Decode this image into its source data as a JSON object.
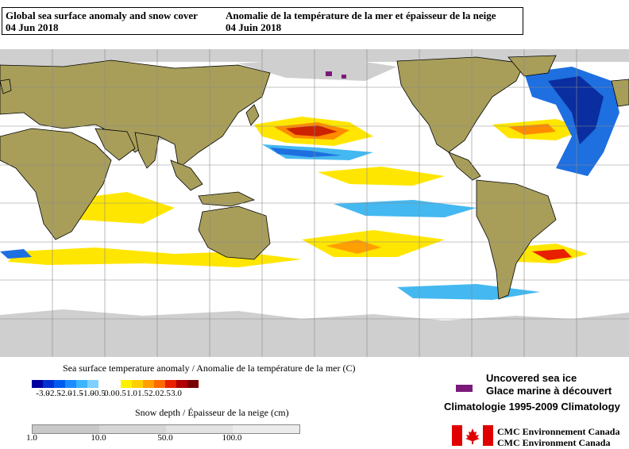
{
  "header": {
    "title_en": "Global sea surface anomaly and snow cover",
    "date_en": "04 Jun 2018",
    "title_fr": "Anomalie de la température de la mer et épaisseur de la neige",
    "date_fr": "04 Juin 2018"
  },
  "colors": {
    "ocean": "#ffffff",
    "land": "#a89e5a",
    "snow_ice": "#cfcfcf",
    "grid": "#8a8a8a",
    "warm_strong": "#cc2200",
    "warm_mid": "#ff8c00",
    "warm_weak": "#ffe600",
    "cool_weak": "#44b8f0",
    "cool_mid": "#1e6fe0",
    "cool_strong": "#0a2ea0",
    "sea_ice": "#7a1a7a"
  },
  "sst_legend": {
    "title": "Sea surface temperature anomaly / Anomalie de la température de la mer (C)",
    "colors": [
      "#0000a0",
      "#0030d0",
      "#005cf0",
      "#1a8cff",
      "#3cb4ff",
      "#80d0ff",
      "#ffffff",
      "#ffffff",
      "#fff000",
      "#ffd000",
      "#ffa000",
      "#ff6a00",
      "#e82000",
      "#b00000",
      "#780000"
    ],
    "ticks": [
      "-3.0",
      "-2.5",
      "-2.0",
      "-1.5",
      "-1.0",
      "-0.5",
      "0.0",
      "0.5",
      "1.0",
      "1.5",
      "2.0",
      "2.5",
      "3.0"
    ]
  },
  "snow_legend": {
    "title": "Snow depth / Épaisseur de la neige (cm)",
    "colors": [
      "#c8c8c8",
      "#d6d6d6",
      "#e2e2e2",
      "#ececec"
    ],
    "ticks": [
      "1.0",
      "10.0",
      "50.0",
      "100.0"
    ]
  },
  "ice_legend": {
    "label_en": "Uncovered sea ice",
    "label_fr": "Glace marine à découvert"
  },
  "climatology": "Climatologie 1995-2009 Climatology",
  "credits": {
    "line1": "CMC  Environnement  Canada",
    "line2": "CMC  Environment  Canada"
  }
}
